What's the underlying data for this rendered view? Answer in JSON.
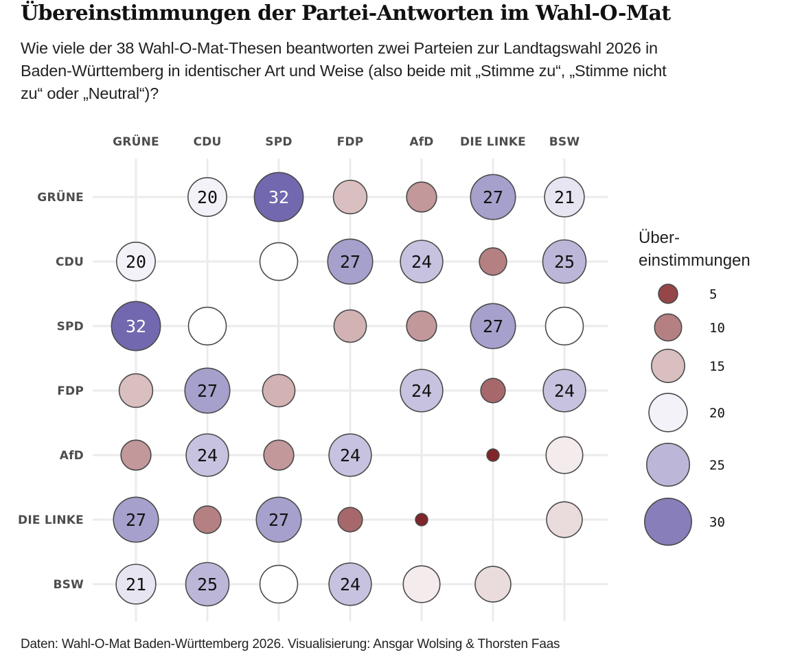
{
  "header": {
    "title": "Übereinstimmungen der Partei-Antworten im Wahl-O-Mat",
    "subtitle": "Wie viele der 38 Wahl-O-Mat-Thesen beantworten zwei Parteien zur Landtagswahl 2026 in Baden-Württemberg in identischer Art und Weise (also beide mit „Stimme zu“, „Stimme nicht zu“ oder „Neutral“)?"
  },
  "footer": {
    "caption": "Daten: Wahl-O-Mat Baden-Württemberg 2026. Visualisierung: Ansgar Wolsing & Thorsten Faas"
  },
  "chart_data": {
    "type": "heatmap",
    "subtype": "bubble-matrix",
    "title": "Übereinstimmungen der Partei-Antworten im Wahl-O-Mat",
    "total_theses": 38,
    "parties": [
      "GRÜNE",
      "CDU",
      "SPD",
      "FDP",
      "AfD",
      "DIE LINKE",
      "BSW"
    ],
    "x_axis_position": "top",
    "grid": true,
    "matrix": [
      [
        null,
        20,
        32,
        15,
        12,
        27,
        21
      ],
      [
        20,
        null,
        19,
        27,
        24,
        10,
        25
      ],
      [
        32,
        19,
        null,
        14,
        12,
        27,
        19
      ],
      [
        15,
        27,
        14,
        null,
        24,
        8,
        24
      ],
      [
        12,
        24,
        12,
        24,
        null,
        2,
        18
      ],
      [
        27,
        10,
        27,
        8,
        2,
        null,
        17
      ],
      [
        21,
        25,
        19,
        24,
        18,
        17,
        null
      ]
    ],
    "labeled_threshold": 20,
    "color_scale": {
      "type": "diverging",
      "midpoint": 19,
      "low_color": "#7a1a1e",
      "mid_color": "#ffffff",
      "high_color": "#5e52a3"
    },
    "legend": {
      "title": "Über-\neinstimmungen",
      "title_lines": [
        "Über-",
        "einstimmungen"
      ],
      "values": [
        5,
        10,
        15,
        20,
        25,
        30
      ],
      "placement": "right"
    },
    "size_scale": "sqrt"
  }
}
